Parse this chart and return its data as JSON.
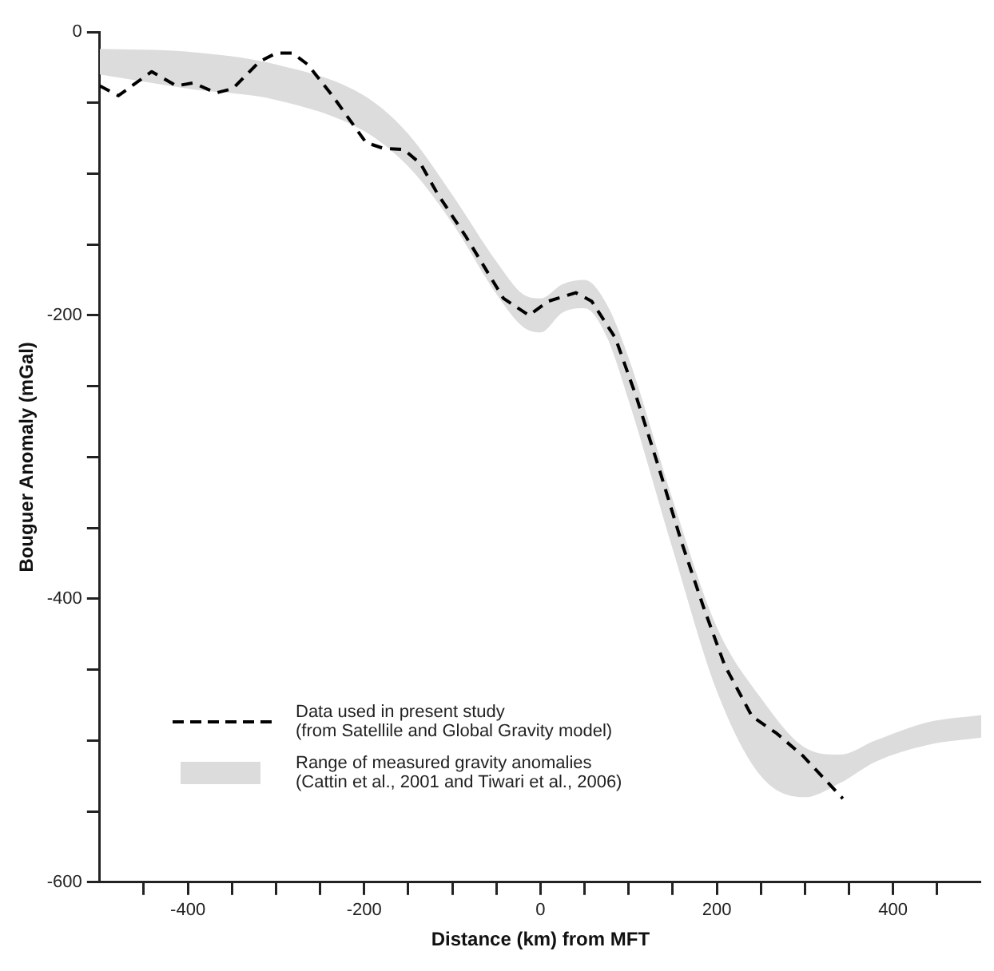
{
  "chart_data": {
    "type": "line",
    "xlabel": "Distance (km) from MFT",
    "ylabel": "Bouguer Anomaly (mGal)",
    "xlim": [
      -500,
      500
    ],
    "ylim": [
      -600,
      0
    ],
    "xticks": [
      {
        "value": -450,
        "label": null
      },
      -400,
      {
        "value": -350,
        "label": null
      },
      {
        "value": -300,
        "label": null
      },
      {
        "value": -250,
        "label": null
      },
      -200,
      {
        "value": -150,
        "label": null
      },
      {
        "value": -100,
        "label": null
      },
      {
        "value": -50,
        "label": null
      },
      0,
      {
        "value": 50,
        "label": null
      },
      {
        "value": 100,
        "label": null
      },
      {
        "value": 150,
        "label": null
      },
      200,
      {
        "value": 250,
        "label": null
      },
      {
        "value": 300,
        "label": null
      },
      {
        "value": 350,
        "label": null
      },
      400,
      {
        "value": 450,
        "label": null
      }
    ],
    "yticks": [
      -600,
      {
        "value": -550,
        "label": null
      },
      {
        "value": -500,
        "label": null
      },
      {
        "value": -450,
        "label": null
      },
      -400,
      {
        "value": -350,
        "label": null
      },
      {
        "value": -300,
        "label": null
      },
      {
        "value": -250,
        "label": null
      },
      -200,
      {
        "value": -150,
        "label": null
      },
      {
        "value": -100,
        "label": null
      },
      {
        "value": -50,
        "label": null
      },
      0
    ],
    "legend": "bottom left",
    "marker": "none",
    "series": [
      {
        "name": "Data used in present study (from Satellile and Global Gravity model)",
        "color": "#000000",
        "line_style": "dashed",
        "x": [
          -500,
          -479,
          -441,
          -413,
          -394,
          -368,
          -349,
          -319,
          -300,
          -281,
          -264,
          -236,
          -198,
          -179,
          -155,
          -136,
          -117,
          -85,
          -42,
          -13,
          9,
          40,
          58,
          85,
          109,
          134,
          160,
          185,
          209,
          240,
          268,
          298,
          343
        ],
        "values": [
          -38,
          -45,
          -28,
          -38,
          -36,
          -43,
          -40,
          -21,
          -15,
          -15,
          -23,
          -45,
          -78,
          -82,
          -83,
          -93,
          -114,
          -144,
          -188,
          -200,
          -190,
          -184,
          -190,
          -216,
          -258,
          -307,
          -360,
          -406,
          -447,
          -483,
          -495,
          -511,
          -541
        ]
      },
      {
        "name": "Range of measured gravity anomalies (Cattin et al., 2001 and Tiwari et al., 2006)",
        "color": "#dcdcdc",
        "x": [
          -500,
          -400,
          -300,
          -200,
          -150,
          -100,
          -50,
          -20,
          0,
          25,
          50,
          75,
          100,
          150,
          200,
          250,
          300,
          340,
          380,
          440,
          500
        ],
        "values": [
          null,
          null,
          null,
          null,
          null,
          null,
          null,
          null,
          null,
          null,
          null,
          null,
          null,
          null,
          null,
          null,
          null,
          null,
          null,
          null,
          null
        ],
        "upper": [
          -12,
          -14,
          -23,
          -45,
          -72,
          -115,
          -162,
          -185,
          -188,
          -178,
          -175,
          -192,
          -230,
          -330,
          -420,
          -470,
          -505,
          -510,
          -500,
          -487,
          -482
        ],
        "lower": [
          -30,
          -40,
          -48,
          -70,
          -95,
          -135,
          -185,
          -208,
          -212,
          -198,
          -195,
          -215,
          -260,
          -365,
          -465,
          -525,
          -540,
          -530,
          -515,
          -503,
          -498
        ]
      }
    ]
  }
}
